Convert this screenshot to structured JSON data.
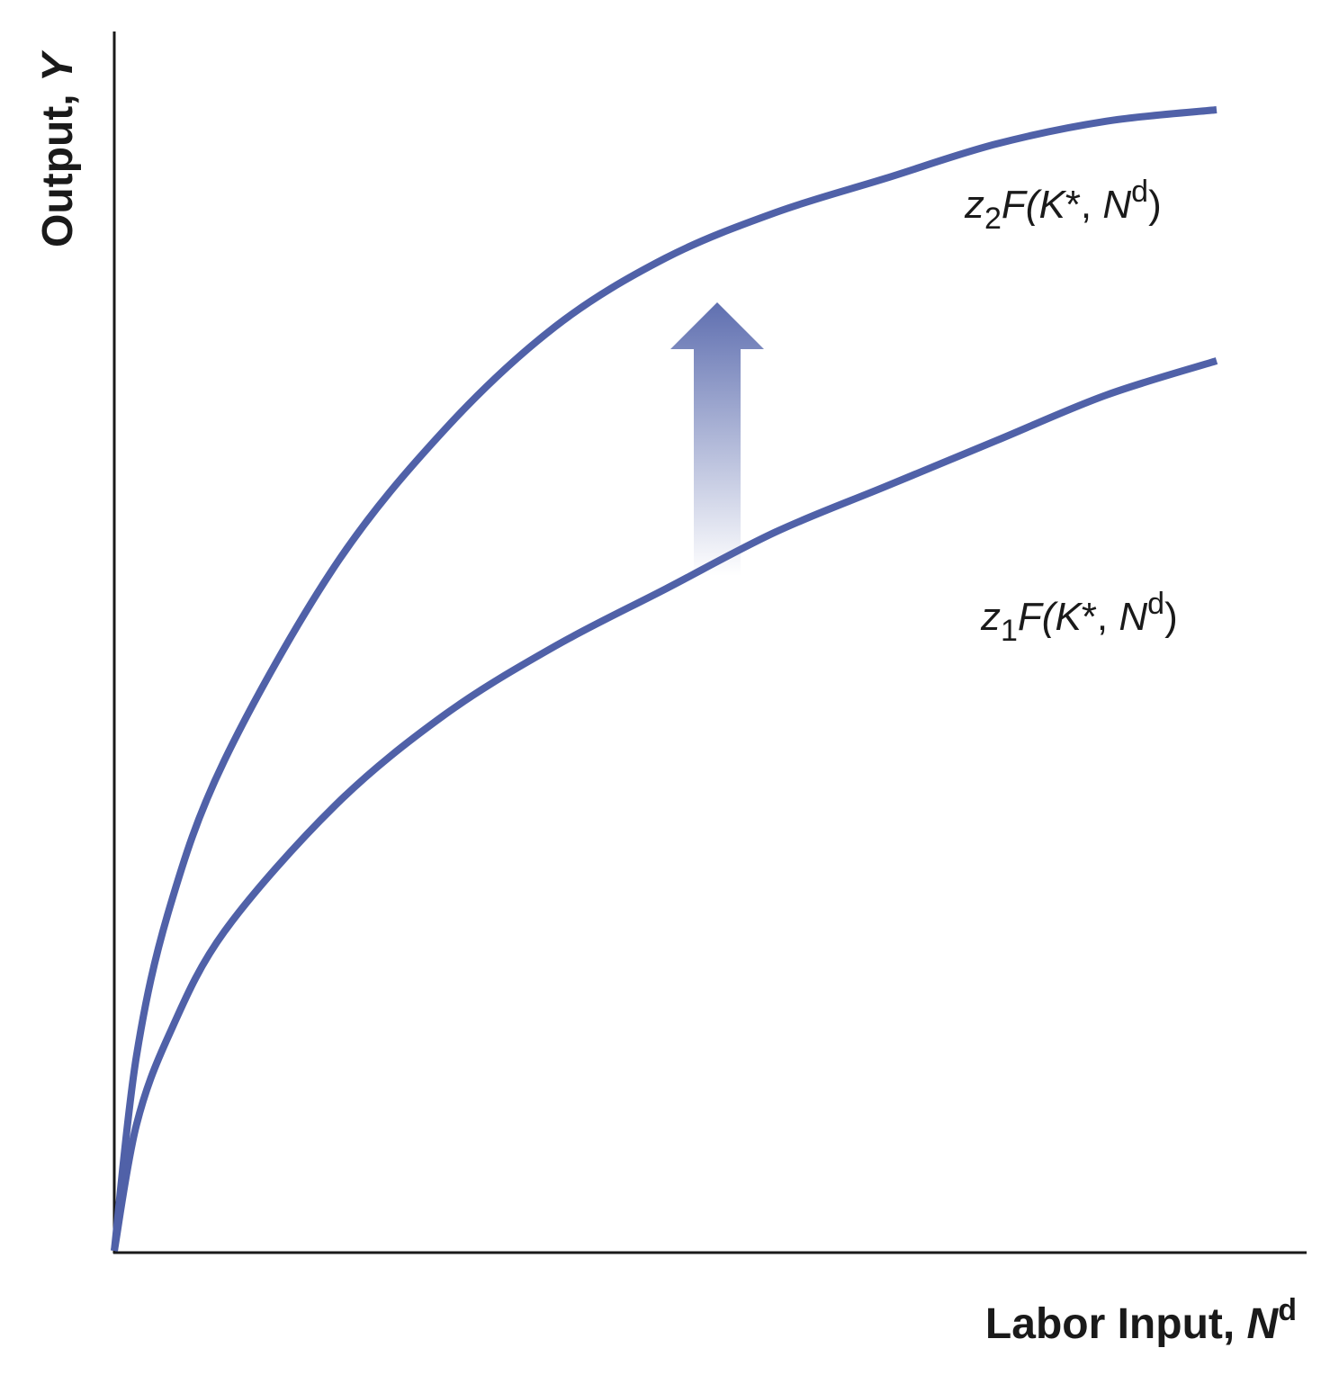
{
  "chart_data": {
    "type": "line",
    "xlabel": {
      "text": "Labor Input, ",
      "var": "N",
      "sup": "d"
    },
    "ylabel": {
      "text": "Output, ",
      "var": "Y"
    },
    "xlim": [
      0,
      1
    ],
    "ylim": [
      0,
      1
    ],
    "grid": false,
    "ticks": false,
    "series": [
      {
        "name": {
          "pre": "z",
          "sub": "1",
          "f": "F(",
          "k": "K",
          "star": "*, ",
          "n": "N",
          "sup": "d",
          "close": ")"
        },
        "x": [
          0,
          0.02,
          0.05,
          0.1,
          0.2,
          0.3,
          0.4,
          0.5,
          0.6,
          0.7,
          0.8,
          0.9,
          1.0
        ],
        "y": [
          0,
          0.11,
          0.19,
          0.28,
          0.39,
          0.47,
          0.53,
          0.58,
          0.63,
          0.67,
          0.71,
          0.75,
          0.78
        ]
      },
      {
        "name": {
          "pre": "z",
          "sub": "2",
          "f": "F(",
          "k": "K",
          "star": "*, ",
          "n": "N",
          "sup": "d",
          "close": ")"
        },
        "x": [
          0,
          0.02,
          0.05,
          0.1,
          0.2,
          0.3,
          0.4,
          0.5,
          0.6,
          0.7,
          0.8,
          0.9,
          1.0
        ],
        "y": [
          0,
          0.17,
          0.3,
          0.43,
          0.6,
          0.72,
          0.81,
          0.87,
          0.91,
          0.94,
          0.97,
          0.99,
          1.0
        ]
      }
    ],
    "annotation": "upward shift arrow between curves",
    "colors": {
      "curve": "#5061a8",
      "axis": "#1a1a1a",
      "arrow": "#5f6fb0"
    }
  }
}
